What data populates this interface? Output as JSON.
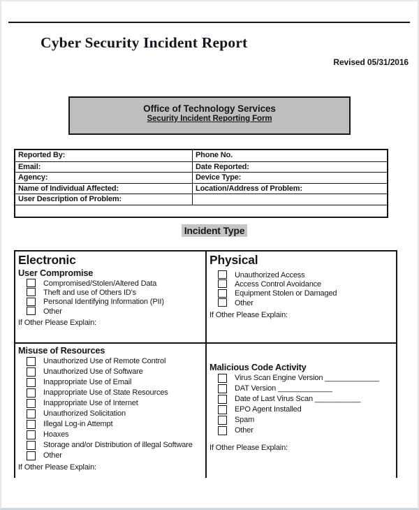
{
  "page": {
    "title": "Cyber Security Incident Report",
    "revised": "Revised 05/31/2016"
  },
  "org_box": {
    "title": "Office of Technology Services",
    "subtitle": "Security Incident Reporting Form"
  },
  "contact_table": {
    "rows": [
      {
        "left": "Reported By:",
        "right": "Phone No."
      },
      {
        "left": "Email:",
        "right": "Date Reported:"
      },
      {
        "left": "Agency:",
        "right": "Device Type:"
      },
      {
        "left": "Name of Individual Affected:",
        "right": "Location/Address of Problem:"
      },
      {
        "left": "User Description of Problem:",
        "right": ""
      }
    ]
  },
  "incident": {
    "heading": "Incident Type",
    "electronic": {
      "heading": "Electronic",
      "subheading": "User Compromise",
      "items": [
        "Compromised/Stolen/Altered Data",
        "Theft and use of Others ID's",
        "Personal Identifying Information (PII)",
        "Other"
      ],
      "explain": "If Other Please Explain:"
    },
    "physical": {
      "heading": "Physical",
      "items": [
        "Unauthorized Access",
        "Access Control Avoidance",
        "Equipment Stolen or Damaged",
        "Other"
      ],
      "explain": "If Other Please Explain:"
    },
    "misuse": {
      "heading": "Misuse of Resources",
      "items": [
        "Unauthorized Use of Remote Control",
        "Unauthorized Use of Software",
        "Inappropriate Use of Email",
        "Inappropriate Use of State Resources",
        "Inappropriate Use of Internet",
        "Unauthorized Solicitation",
        "Illegal Log-in Attempt",
        "Hoaxes",
        "Storage and/or Distribution of illegal Software",
        "Other"
      ],
      "explain": "If Other Please Explain:"
    },
    "malicious": {
      "heading": "Malicious Code Activity",
      "items": [
        "Virus Scan Engine Version _____________",
        "DAT Version _____________",
        "Date of Last Virus Scan ___________",
        "EPO Agent Installed",
        "Spam",
        "Other"
      ],
      "explain": "If Other Please Explain:"
    }
  },
  "colors": {
    "ink": "#141414",
    "org_box_bg": "#bfbfbf",
    "incident_type_highlight": "#c6c6c6",
    "page_edge": "#ccd8e0"
  }
}
